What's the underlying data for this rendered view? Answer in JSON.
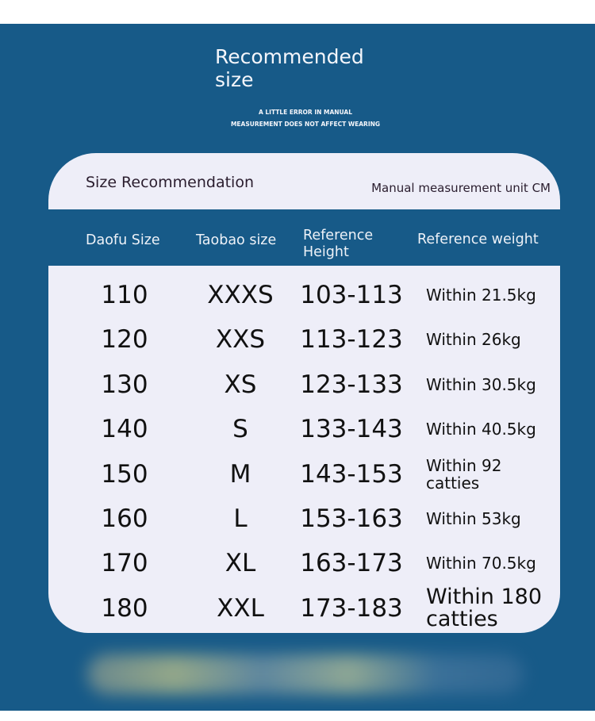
{
  "header": {
    "title": "Recommended size",
    "subtitle_line1": "A LITTLE ERROR IN MANUAL",
    "subtitle_line2": "MEASUREMENT DOES NOT AFFECT WEARING"
  },
  "panel": {
    "heading": "Size Recommendation",
    "unit_note": "Manual measurement unit CM"
  },
  "table": {
    "columns": [
      "Daofu Size",
      "Taobao size",
      "Reference Height",
      "Reference weight"
    ],
    "rows": [
      [
        "110",
        "XXXS",
        "103-113",
        "Within 21.5kg"
      ],
      [
        "120",
        "XXS",
        "113-123",
        "Within 26kg"
      ],
      [
        "130",
        "XS",
        "123-133",
        "Within 30.5kg"
      ],
      [
        "140",
        "S",
        "133-143",
        "Within 40.5kg"
      ],
      [
        "150",
        "M",
        "143-153",
        "Within 92 catties"
      ],
      [
        "160",
        "L",
        "153-163",
        "Within 53kg"
      ],
      [
        "170",
        "XL",
        "163-173",
        "Within 70.5kg"
      ],
      [
        "180",
        "XXL",
        "173-183",
        "Within 180 catties"
      ]
    ]
  },
  "colors": {
    "background": "#175a88",
    "panel": "#eeeef8",
    "text": "#111111"
  }
}
